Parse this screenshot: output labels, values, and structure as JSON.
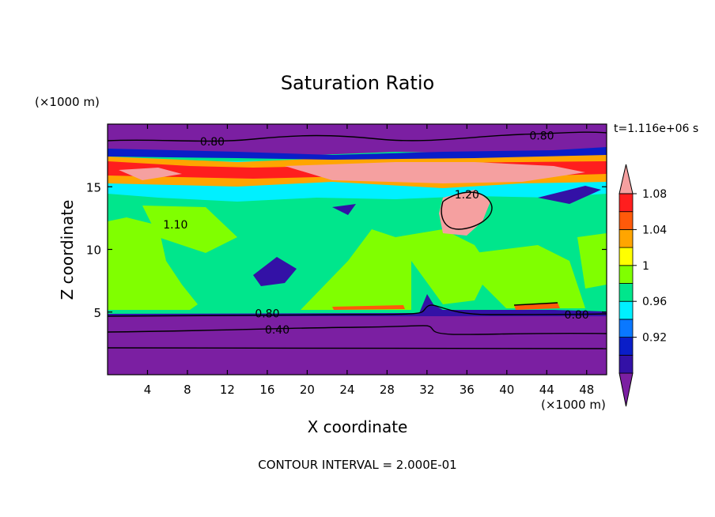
{
  "chart_data": {
    "type": "heatmap",
    "title": "Saturation Ratio",
    "xlabel": "X coordinate",
    "ylabel": "Z coordinate",
    "x_unit": "(×1000 m)",
    "y_unit": "(×1000 m)",
    "time_label": "t=1.116e+06 s",
    "footer": "CONTOUR INTERVAL = 2.000E-01",
    "xlim": [
      0,
      50
    ],
    "ylim": [
      0,
      20
    ],
    "x_ticks": [
      4,
      8,
      12,
      16,
      20,
      24,
      28,
      32,
      36,
      40,
      44,
      48
    ],
    "y_ticks": [
      5,
      10,
      15
    ],
    "colorbar": {
      "colors": [
        "#7b1fa2",
        "#3311a6",
        "#0a1ec8",
        "#0a78ff",
        "#00f0ff",
        "#00e68c",
        "#80ff00",
        "#ffff00",
        "#ffa500",
        "#ff5a0a",
        "#ff1e1e",
        "#f5a0a0"
      ],
      "labels": [
        "0.92",
        "0.96",
        "1",
        "1.04",
        "1.08"
      ]
    },
    "contour_labels": [
      {
        "text": "0.80",
        "x": 10.5,
        "z": 18.6
      },
      {
        "text": "0.80",
        "x": 43.5,
        "z": 19.1
      },
      {
        "text": "1.20",
        "x": 36.0,
        "z": 14.4
      },
      {
        "text": "1.10",
        "x": 6.8,
        "z": 12.0
      },
      {
        "text": "0.80",
        "x": 16.0,
        "z": 4.9
      },
      {
        "text": "0.80",
        "x": 47.0,
        "z": 4.8
      },
      {
        "text": "0.40",
        "x": 17.0,
        "z": 3.6
      }
    ]
  }
}
